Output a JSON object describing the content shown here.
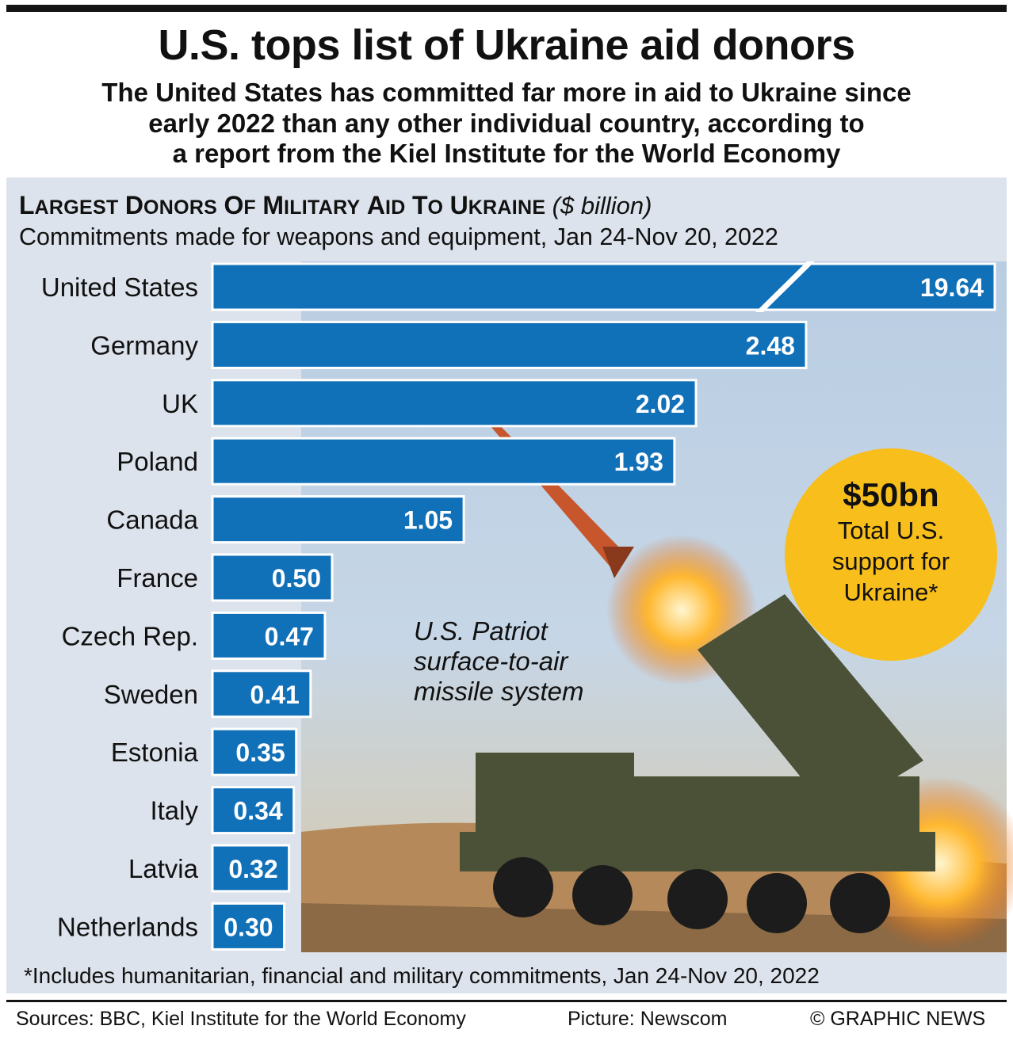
{
  "header": {
    "title": "U.S. tops list of Ukraine aid donors",
    "subtitle_lines": [
      "The United States has committed far more in aid to Ukraine since",
      "early 2022 than any other individual country, according to",
      "a report from the Kiel Institute for the World Economy"
    ]
  },
  "chart_data": {
    "type": "bar",
    "orientation": "horizontal",
    "title": "Largest Donors of Military Aid to Ukraine",
    "title_unit": "($ billion)",
    "subtitle": "Commitments made for weapons and equipment, Jan 24-Nov 20, 2022",
    "categories": [
      "United States",
      "Germany",
      "UK",
      "Poland",
      "Canada",
      "France",
      "Czech Rep.",
      "Sweden",
      "Estonia",
      "Italy",
      "Latvia",
      "Netherlands"
    ],
    "values": [
      19.64,
      2.48,
      2.02,
      1.93,
      1.05,
      0.5,
      0.47,
      0.41,
      0.35,
      0.34,
      0.32,
      0.3
    ],
    "value_labels": [
      "19.64",
      "2.48",
      "2.02",
      "1.93",
      "1.05",
      "0.50",
      "0.47",
      "0.41",
      "0.35",
      "0.34",
      "0.32",
      "0.30"
    ],
    "axis_break_on": "United States",
    "bar_color": "#1070b8"
  },
  "callout": {
    "amount": "$50bn",
    "lines": [
      "Total U.S.",
      "support for",
      "Ukraine*"
    ],
    "color": "#f8be1c"
  },
  "picture_caption": [
    "U.S. Patriot",
    "surface-to-air",
    "missile system"
  ],
  "footnote": "*Includes humanitarian, financial and military commitments, Jan 24-Nov 20, 2022",
  "credits": {
    "sources": "Sources: BBC, Kiel Institute for the World Economy",
    "picture": "Picture: Newscom",
    "copyright": "© GRAPHIC NEWS"
  }
}
